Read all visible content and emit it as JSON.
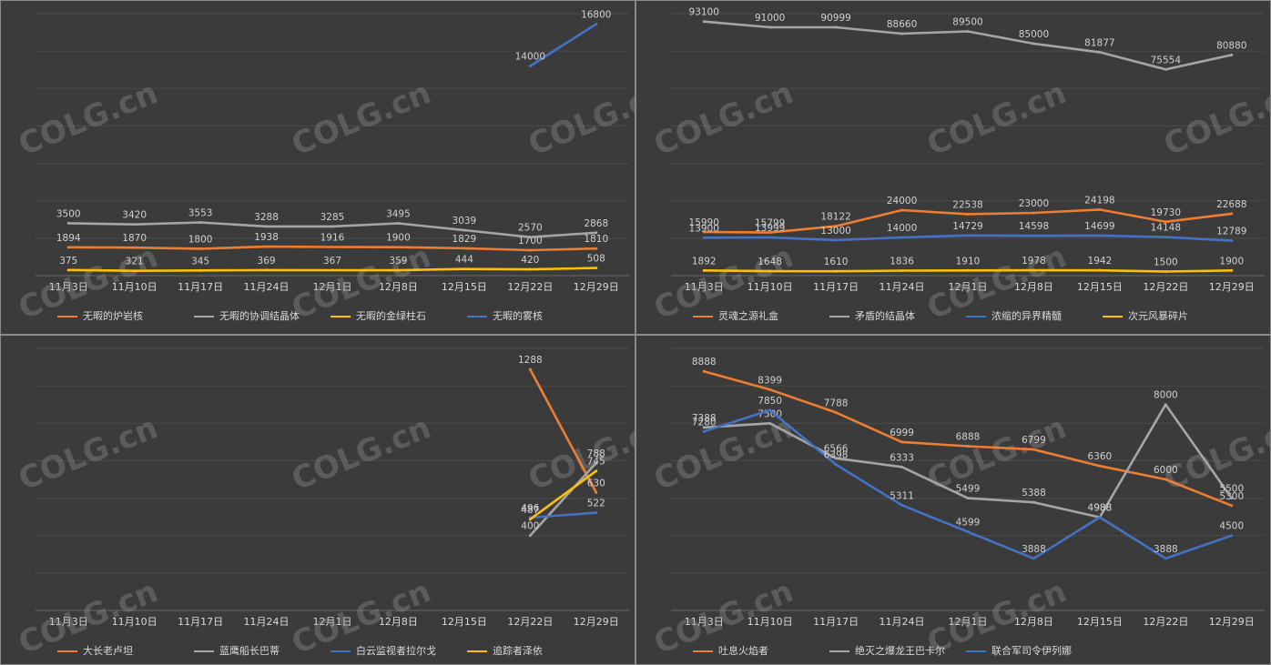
{
  "watermark": "COLG.cn",
  "chart_data": [
    {
      "type": "line",
      "categories": [
        "11月3日",
        "11月10日",
        "11月17日",
        "11月24日",
        "12月1日",
        "12月8日",
        "12月15日",
        "12月22日",
        "12月29日"
      ],
      "ylim": [
        0,
        17500
      ],
      "series": [
        {
          "name": "无暇的炉岩核",
          "color": "#ed7d31",
          "values": [
            1894,
            1870,
            1800,
            1938,
            1916,
            1900,
            1829,
            1700,
            1810
          ]
        },
        {
          "name": "无暇的协调结晶体",
          "color": "#a5a5a5",
          "values": [
            3500,
            3420,
            3553,
            3288,
            3285,
            3495,
            3039,
            2570,
            2868
          ]
        },
        {
          "name": "无暇的金绿柱石",
          "color": "#ffc000",
          "values": [
            375,
            321,
            345,
            369,
            367,
            359,
            444,
            420,
            508
          ]
        },
        {
          "name": "无暇的雾核",
          "color": "#4472c4",
          "values": [
            null,
            null,
            null,
            null,
            null,
            null,
            null,
            14000,
            16800
          ]
        }
      ]
    },
    {
      "type": "line",
      "categories": [
        "11月3日",
        "11月10日",
        "11月17日",
        "11月24日",
        "12月1日",
        "12月8日",
        "12月15日",
        "12月22日",
        "12月29日"
      ],
      "ylim": [
        0,
        96000
      ],
      "series": [
        {
          "name": "灵魂之源礼盒",
          "color": "#ed7d31",
          "values": [
            15990,
            15799,
            18122,
            24000,
            22538,
            23000,
            24198,
            19730,
            22688
          ]
        },
        {
          "name": "矛盾的结晶体",
          "color": "#a5a5a5",
          "values": [
            93100,
            91000,
            90999,
            88660,
            89500,
            85000,
            81877,
            75554,
            80880
          ]
        },
        {
          "name": "浓缩的异界精髓",
          "color": "#4472c4",
          "values": [
            13900,
            13999,
            13000,
            14000,
            14729,
            14598,
            14699,
            14148,
            12789
          ]
        },
        {
          "name": "次元风暴碎片",
          "color": "#ffc000",
          "values": [
            1892,
            1648,
            1610,
            1836,
            1910,
            1978,
            1942,
            1500,
            1900
          ]
        }
      ]
    },
    {
      "type": "line",
      "categories": [
        "11月3日",
        "11月10日",
        "11月17日",
        "11月24日",
        "12月1日",
        "12月8日",
        "12月15日",
        "12月22日",
        "12月29日"
      ],
      "ylim": [
        0,
        1400
      ],
      "series": [
        {
          "name": "大长老卢坦",
          "color": "#ed7d31",
          "values": [
            null,
            null,
            null,
            null,
            null,
            null,
            null,
            1288,
            630
          ]
        },
        {
          "name": "蓝鹰船长巴蒂",
          "color": "#a5a5a5",
          "values": [
            null,
            null,
            null,
            null,
            null,
            null,
            null,
            400,
            788
          ]
        },
        {
          "name": "白云监视者拉尔戈",
          "color": "#4472c4",
          "values": [
            null,
            null,
            null,
            null,
            null,
            null,
            null,
            496,
            522
          ]
        },
        {
          "name": "追踪者泽依",
          "color": "#ffc000",
          "values": [
            null,
            null,
            null,
            null,
            null,
            null,
            null,
            487,
            745
          ]
        }
      ]
    },
    {
      "type": "line",
      "categories": [
        "11月3日",
        "11月10日",
        "11月17日",
        "11月24日",
        "12月1日",
        "12月8日",
        "12月15日",
        "12月22日",
        "12月29日"
      ],
      "ylim": [
        2500,
        9500
      ],
      "series": [
        {
          "name": "吐息火焰者",
          "color": "#ed7d31",
          "values": [
            8888,
            8399,
            7788,
            6999,
            6888,
            6799,
            6360,
            6000,
            5300
          ]
        },
        {
          "name": "绝灭之爆龙王巴卡尔",
          "color": "#a5a5a5",
          "values": [
            7388,
            7500,
            6566,
            6333,
            5499,
            5388,
            4988,
            8000,
            5500
          ]
        },
        {
          "name": "联合军司令伊列娜",
          "color": "#4472c4",
          "values": [
            7280,
            7850,
            6398,
            5311,
            4599,
            3888,
            4988,
            3888,
            4500
          ]
        }
      ]
    }
  ]
}
